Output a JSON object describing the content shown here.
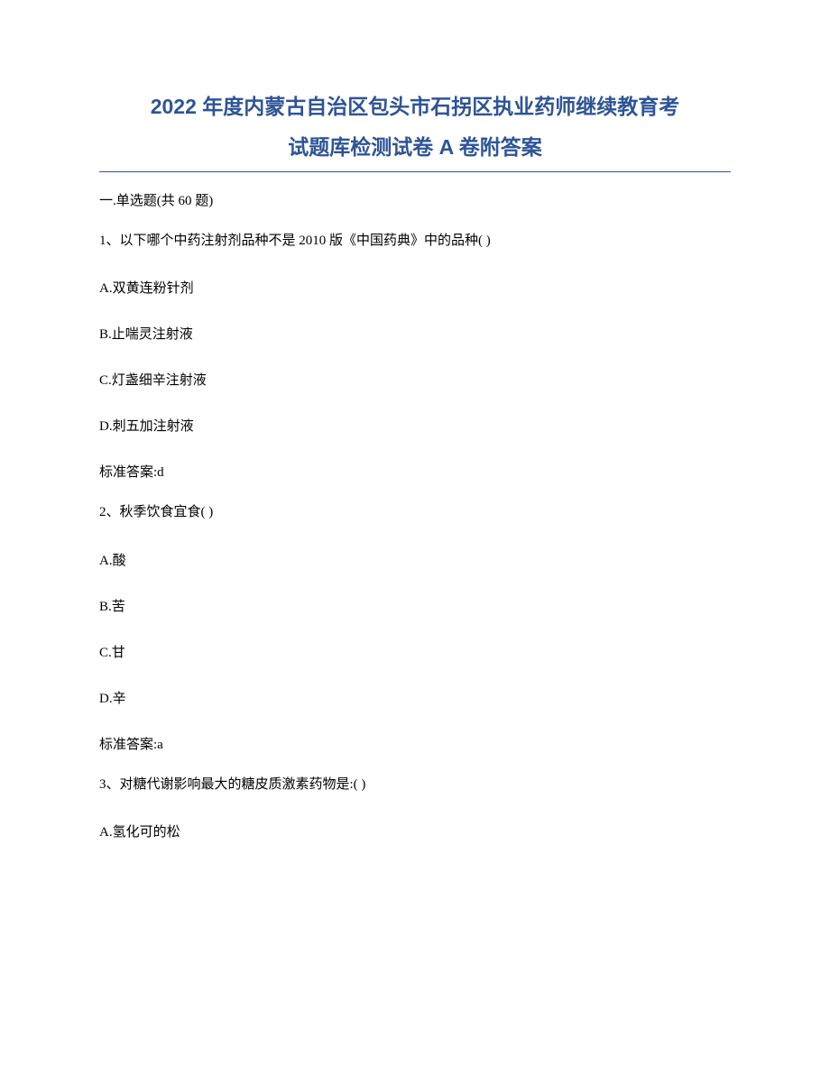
{
  "title_line1": "2022 年度内蒙古自治区包头市石拐区执业药师继续教育考",
  "title_line2": "试题库检测试卷 A 卷附答案",
  "section_header": "一.单选题(共 60 题)",
  "q1": {
    "text": "1、以下哪个中药注射剂品种不是 2010 版《中国药典》中的品种( )",
    "optA": "A.双黄连粉针剂",
    "optB": "B.止喘灵注射液",
    "optC": "C.灯盏细辛注射液",
    "optD": "D.刺五加注射液",
    "answer": "标准答案:d"
  },
  "q2": {
    "text": "2、秋季饮食宜食( )",
    "optA": "A.酸",
    "optB": "B.苦",
    "optC": "C.甘",
    "optD": "D.辛",
    "answer": "标准答案:a"
  },
  "q3": {
    "text": "3、对糖代谢影响最大的糖皮质激素药物是:( )",
    "optA": "A.氢化可的松"
  }
}
